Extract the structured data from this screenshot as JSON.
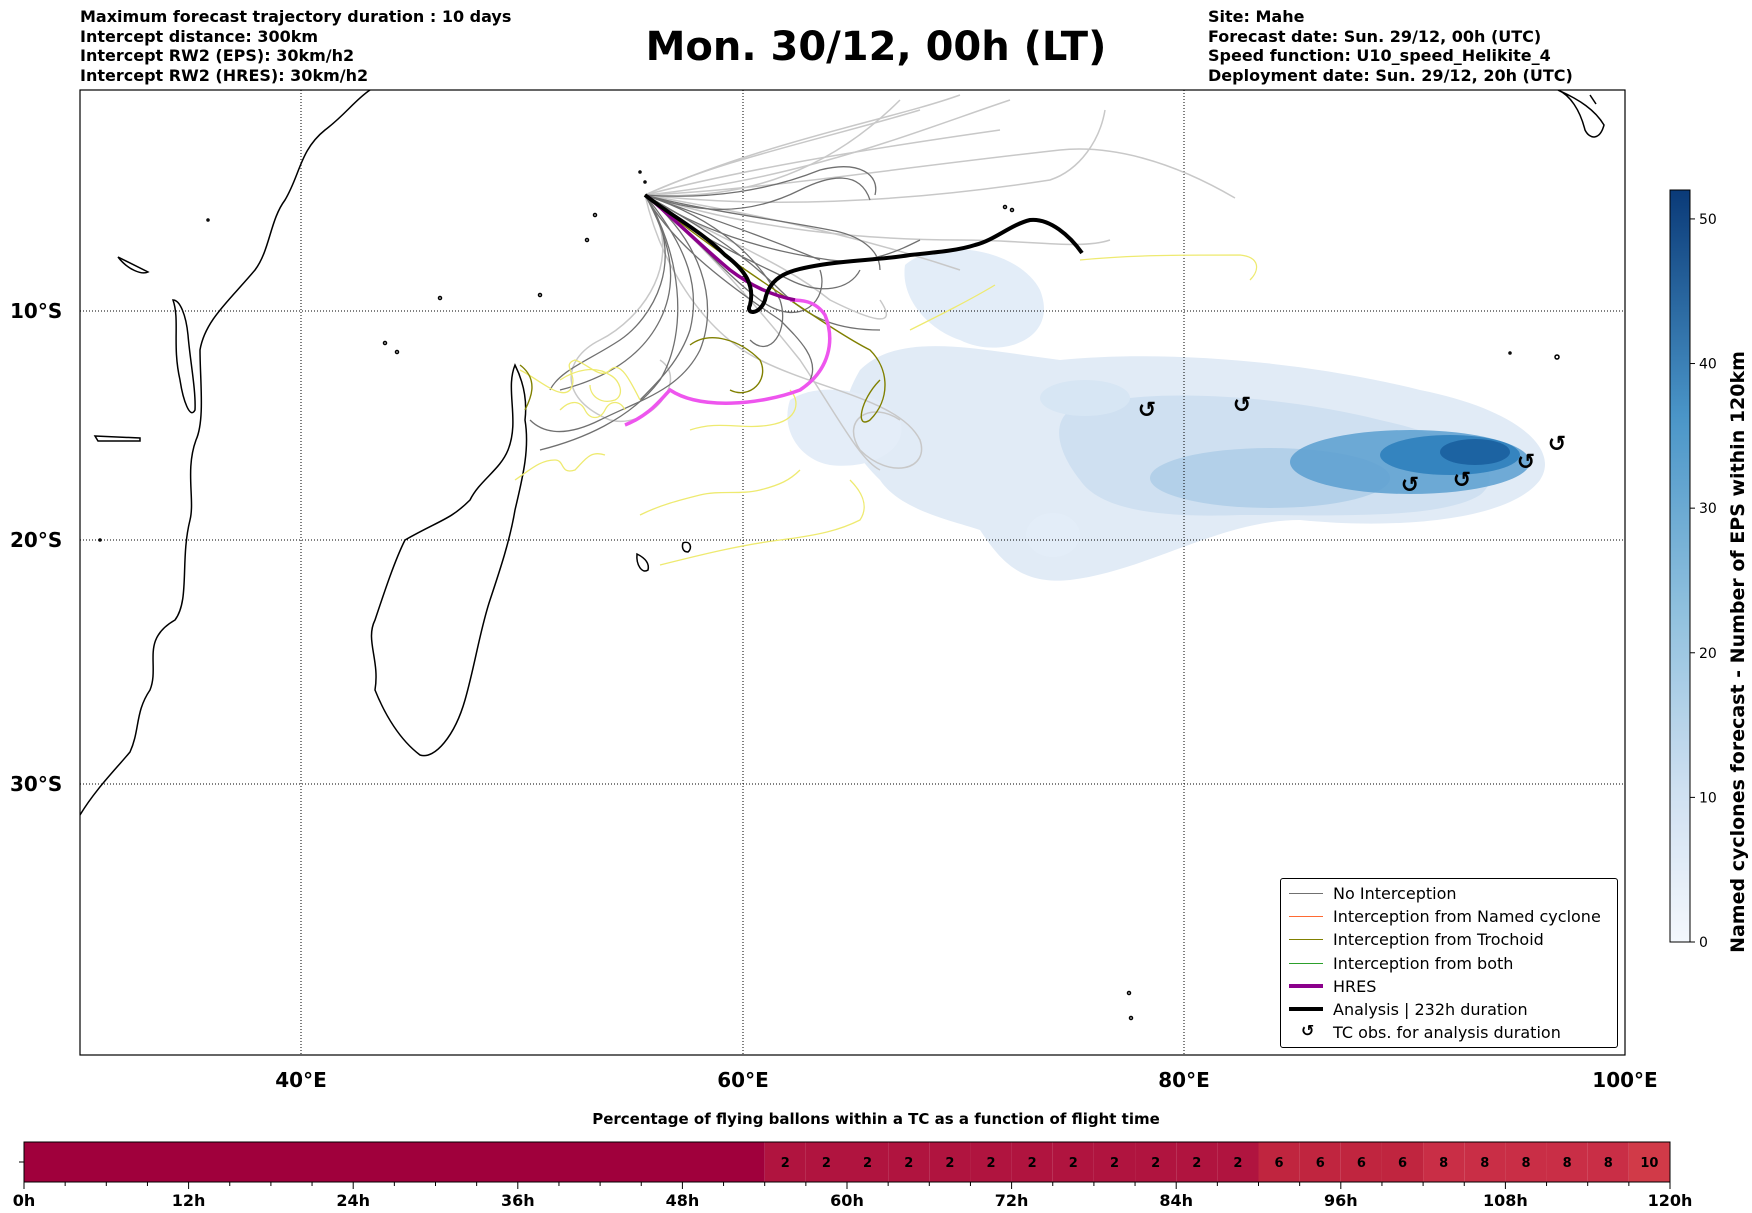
{
  "header_left": [
    "Maximum forecast trajectory duration : 10 days",
    "Intercept distance: 300km",
    "Intercept RW2 (EPS):  30km/h2",
    "Intercept RW2 (HRES): 30km/h2"
  ],
  "title": "Mon. 30/12, 00h (LT)",
  "header_right": [
    "Site: Mahe",
    "Forecast date: Sun. 29/12, 00h (UTC)",
    "Speed function: U10_speed_Helikite_4",
    "Deployment date: Sun. 29/12, 20h (UTC)"
  ],
  "map": {
    "lon_labels": [
      "40°E",
      "60°E",
      "80°E",
      "100°E"
    ],
    "lat_labels": [
      "10°S",
      "20°S",
      "30°S"
    ],
    "colors": {
      "no_interception": "#707070",
      "named_cyclone": "#ff6a33",
      "trochoid": "#808000",
      "both": "#2ca02c",
      "hres": "#8b008b",
      "analysis": "#000000",
      "eps_light_traj": "#c8c8c8",
      "yellow_traj": "#eeea70",
      "hres_pink": "#ee55ee"
    }
  },
  "legend": {
    "items": [
      {
        "label": "No Interception",
        "icon": "line-grey"
      },
      {
        "label": "Interception from Named cyclone",
        "icon": "line-orange"
      },
      {
        "label": "Interception from Trochoid",
        "icon": "line-olive"
      },
      {
        "label": "Interception from both",
        "icon": "line-green"
      },
      {
        "label": "HRES",
        "icon": "line-purple-thick"
      },
      {
        "label": "Analysis | 232h duration",
        "icon": "line-black-thick"
      },
      {
        "label": "TC obs. for analysis duration",
        "icon": "cyclone-icon"
      }
    ]
  },
  "colorbar": {
    "label": "Named cyclones forecast - Number of EPS within 120km",
    "ticks": [
      "0",
      "10",
      "20",
      "30",
      "40",
      "50"
    ],
    "min": 0,
    "max": 52
  },
  "timeline": {
    "title": "Percentage of flying ballons within a TC as a function of flight time",
    "tick_labels": [
      "0h",
      "12h",
      "24h",
      "36h",
      "48h",
      "60h",
      "72h",
      "84h",
      "96h",
      "108h",
      "120h"
    ]
  },
  "chart_data": {
    "type": "heatmap",
    "title": "Percentage of flying ballons within a TC as a function of flight time",
    "x_unit": "h",
    "xlim": [
      0,
      120
    ],
    "bin_hours": 3,
    "bins": [
      {
        "start_h": 0,
        "end_h": 54,
        "value": null
      },
      {
        "start_h": 54,
        "end_h": 57,
        "value": 2
      },
      {
        "start_h": 57,
        "end_h": 60,
        "value": 2
      },
      {
        "start_h": 60,
        "end_h": 63,
        "value": 2
      },
      {
        "start_h": 63,
        "end_h": 66,
        "value": 2
      },
      {
        "start_h": 66,
        "end_h": 69,
        "value": 2
      },
      {
        "start_h": 69,
        "end_h": 72,
        "value": 2
      },
      {
        "start_h": 72,
        "end_h": 75,
        "value": 2
      },
      {
        "start_h": 75,
        "end_h": 78,
        "value": 2
      },
      {
        "start_h": 78,
        "end_h": 81,
        "value": 2
      },
      {
        "start_h": 81,
        "end_h": 84,
        "value": 2
      },
      {
        "start_h": 84,
        "end_h": 87,
        "value": 2
      },
      {
        "start_h": 87,
        "end_h": 90,
        "value": 2
      },
      {
        "start_h": 90,
        "end_h": 93,
        "value": 6
      },
      {
        "start_h": 93,
        "end_h": 96,
        "value": 6
      },
      {
        "start_h": 96,
        "end_h": 99,
        "value": 6
      },
      {
        "start_h": 99,
        "end_h": 102,
        "value": 6
      },
      {
        "start_h": 102,
        "end_h": 105,
        "value": 8
      },
      {
        "start_h": 105,
        "end_h": 108,
        "value": 8
      },
      {
        "start_h": 108,
        "end_h": 111,
        "value": 8
      },
      {
        "start_h": 111,
        "end_h": 114,
        "value": 8
      },
      {
        "start_h": 114,
        "end_h": 117,
        "value": 8
      },
      {
        "start_h": 117,
        "end_h": 120,
        "value": 10
      }
    ],
    "colors": {
      "empty": "#a0003c",
      "2": "#b0143f",
      "6": "#c0253f",
      "8": "#c92e46",
      "10": "#d13a48"
    }
  }
}
